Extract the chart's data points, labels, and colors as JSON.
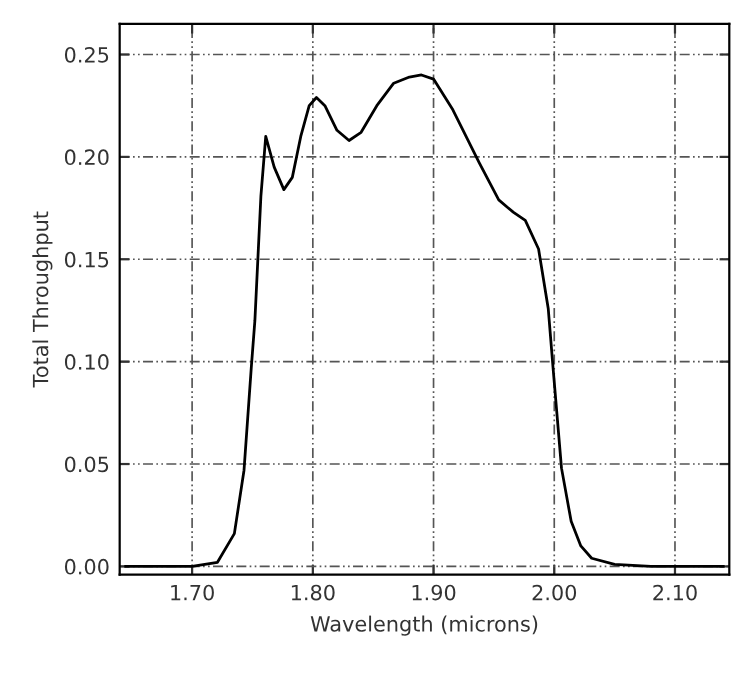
{
  "chart_data": {
    "type": "line",
    "xlabel": "Wavelength (microns)",
    "ylabel": "Total Throughput",
    "x": [
      1.645,
      1.7,
      1.721,
      1.735,
      1.743,
      1.749,
      1.752,
      1.757,
      1.761,
      1.768,
      1.776,
      1.783,
      1.79,
      1.797,
      1.803,
      1.81,
      1.82,
      1.83,
      1.84,
      1.853,
      1.867,
      1.88,
      1.89,
      1.9,
      1.916,
      1.938,
      1.954,
      1.966,
      1.976,
      1.987,
      1.995,
      1.999,
      2.006,
      2.014,
      2.022,
      2.031,
      2.05,
      2.08,
      2.14
    ],
    "series": [
      {
        "color": "#000000",
        "values": [
          0.0,
          0.0,
          0.002,
          0.016,
          0.047,
          0.097,
          0.12,
          0.181,
          0.21,
          0.195,
          0.184,
          0.19,
          0.21,
          0.225,
          0.229,
          0.225,
          0.213,
          0.208,
          0.212,
          0.225,
          0.236,
          0.239,
          0.24,
          0.238,
          0.223,
          0.197,
          0.179,
          0.173,
          0.169,
          0.155,
          0.126,
          0.097,
          0.048,
          0.022,
          0.01,
          0.004,
          0.001,
          0.0,
          0.0
        ]
      }
    ],
    "xlim": [
      1.64,
      2.145
    ],
    "ylim": [
      -0.004,
      0.265
    ],
    "xticks": [
      {
        "value": 1.7,
        "label": "1.70"
      },
      {
        "value": 1.8,
        "label": "1.80"
      },
      {
        "value": 1.9,
        "label": "1.90"
      },
      {
        "value": 2.0,
        "label": "2.00"
      },
      {
        "value": 2.1,
        "label": "2.10"
      }
    ],
    "yticks": [
      {
        "value": 0.0,
        "label": "0.00"
      },
      {
        "value": 0.05,
        "label": "0.05"
      },
      {
        "value": 0.1,
        "label": "0.10"
      },
      {
        "value": 0.15,
        "label": "0.15"
      },
      {
        "value": 0.2,
        "label": "0.20"
      },
      {
        "value": 0.25,
        "label": "0.25"
      }
    ],
    "grid": true,
    "line_style": "solid",
    "marker": "none"
  }
}
